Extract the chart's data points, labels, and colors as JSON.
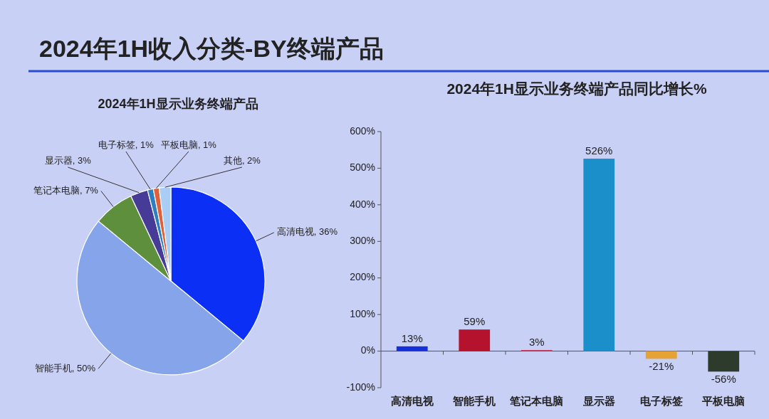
{
  "chart_data": [
    {
      "type": "other",
      "title": "2024年1H收入分类-BY终端产品"
    },
    {
      "type": "pie",
      "title": "2024年1H显示业务终端产品",
      "categories": [
        "高清电视",
        "智能手机",
        "笔记本电脑",
        "显示器",
        "电子标签",
        "平板电脑",
        "其他"
      ],
      "values": [
        36,
        50,
        7,
        3,
        1,
        1,
        2
      ],
      "colors": [
        "#0b2ff5",
        "#86a4ea",
        "#5e8f3c",
        "#463b96",
        "#2d7fc0",
        "#e0603a",
        "#aacdf5"
      ],
      "value_labels": [
        "36%",
        "50%",
        "7%",
        "3%",
        "1%",
        "1%",
        "2%"
      ]
    },
    {
      "type": "bar",
      "title": "2024年1H显示业务终端产品同比增长%",
      "categories": [
        "高清电视",
        "智能手机",
        "笔记本电脑",
        "显示器",
        "电子标签",
        "平板电脑"
      ],
      "values": [
        13,
        59,
        3,
        526,
        -21,
        -56
      ],
      "colors": [
        "#1530d8",
        "#b5122e",
        "#c8385a",
        "#1b8fc9",
        "#e5a235",
        "#2c3b2c"
      ],
      "value_labels": [
        "13%",
        "59%",
        "3%",
        "526%",
        "-21%",
        "-56%"
      ],
      "ylim": [
        -100,
        600
      ],
      "yticks": [
        {
          "value": -100,
          "label": "-100%"
        },
        {
          "value": 0,
          "label": "0%"
        },
        {
          "value": 100,
          "label": "100%"
        },
        {
          "value": 200,
          "label": "200%"
        },
        {
          "value": 300,
          "label": "300%"
        },
        {
          "value": 400,
          "label": "400%"
        },
        {
          "value": 500,
          "label": "500%"
        },
        {
          "value": 600,
          "label": "600%"
        }
      ]
    }
  ]
}
